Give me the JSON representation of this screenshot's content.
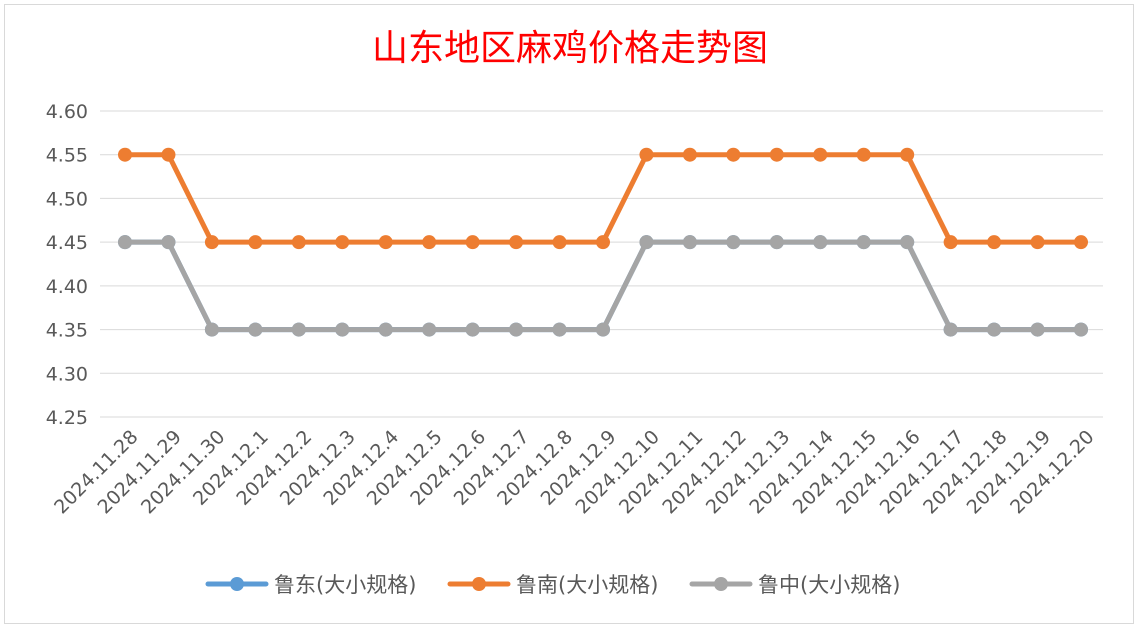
{
  "chart_data": {
    "type": "line",
    "title": "山东地区麻鸡价格走势图",
    "categories": [
      "2024.11.28",
      "2024.11.29",
      "2024.11.30",
      "2024.12.1",
      "2024.12.2",
      "2024.12.3",
      "2024.12.4",
      "2024.12.5",
      "2024.12.6",
      "2024.12.7",
      "2024.12.8",
      "2024.12.9",
      "2024.12.10",
      "2024.12.11",
      "2024.12.12",
      "2024.12.13",
      "2024.12.14",
      "2024.12.15",
      "2024.12.16",
      "2024.12.17",
      "2024.12.18",
      "2024.12.19",
      "2024.12.20"
    ],
    "y_ticks": [
      "4.25",
      "4.30",
      "4.35",
      "4.40",
      "4.45",
      "4.50",
      "4.55",
      "4.60"
    ],
    "ylim": [
      4.25,
      4.6
    ],
    "grid": true,
    "legend_position": "bottom",
    "series": [
      {
        "name": "鲁东(大小规格)",
        "color": "#5b9bd5",
        "values": [
          4.45,
          4.45,
          4.35,
          4.35,
          4.35,
          4.35,
          4.35,
          4.35,
          4.35,
          4.35,
          4.35,
          4.35,
          4.45,
          4.45,
          4.45,
          4.45,
          4.45,
          4.45,
          4.45,
          4.35,
          4.35,
          4.35,
          4.35
        ]
      },
      {
        "name": "鲁南(大小规格)",
        "color": "#ed7d31",
        "values": [
          4.55,
          4.55,
          4.45,
          4.45,
          4.45,
          4.45,
          4.45,
          4.45,
          4.45,
          4.45,
          4.45,
          4.45,
          4.55,
          4.55,
          4.55,
          4.55,
          4.55,
          4.55,
          4.55,
          4.45,
          4.45,
          4.45,
          4.45
        ]
      },
      {
        "name": "鲁中(大小规格)",
        "color": "#a5a5a5",
        "values": [
          4.45,
          4.45,
          4.35,
          4.35,
          4.35,
          4.35,
          4.35,
          4.35,
          4.35,
          4.35,
          4.35,
          4.35,
          4.45,
          4.45,
          4.45,
          4.45,
          4.45,
          4.45,
          4.45,
          4.35,
          4.35,
          4.35,
          4.35
        ]
      }
    ]
  }
}
